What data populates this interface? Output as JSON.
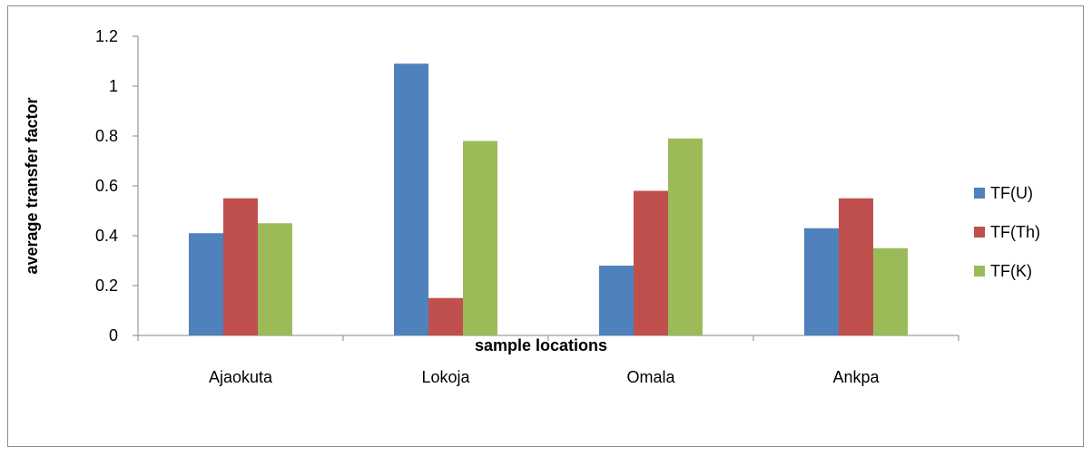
{
  "chart_data": {
    "type": "bar",
    "categories": [
      "Ajaokuta",
      "Lokoja",
      "Omala",
      "Ankpa"
    ],
    "series": [
      {
        "name": "TF(U)",
        "color": "#4f81bd",
        "values": [
          0.41,
          1.09,
          0.28,
          0.43
        ]
      },
      {
        "name": "TF(Th)",
        "color": "#c0504d",
        "values": [
          0.55,
          0.15,
          0.58,
          0.55
        ]
      },
      {
        "name": "TF(K)",
        "color": "#9bbb59",
        "values": [
          0.45,
          0.78,
          0.79,
          0.35
        ]
      }
    ],
    "title": "",
    "xlabel": "sample locations",
    "ylabel": "average transfer factor",
    "ylim": [
      0,
      1.2
    ],
    "yticks": [
      0,
      0.2,
      0.4,
      0.6,
      0.8,
      1,
      1.2
    ],
    "ytick_labels": [
      "0",
      "0.2",
      "0.4",
      "0.6",
      "0.8",
      "1",
      "1.2"
    ],
    "grid": false,
    "legend_position": "right"
  }
}
